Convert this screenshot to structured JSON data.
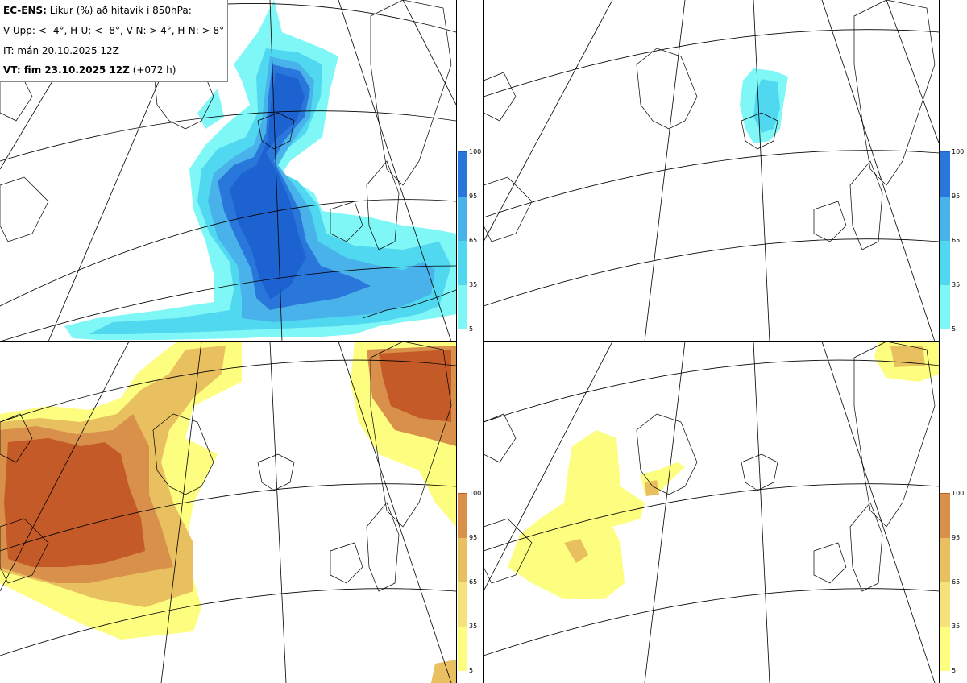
{
  "header": {
    "line1_bold": "EC-ENS:",
    "line1_rest": " Líkur (%) að hitavik í 850hPa:",
    "line2": "V-Upp: < -4°, H-U: < -8°, V-N: > 4°, H-N: > 8°",
    "line3": "IT: mán 20.10.2025 12Z",
    "line4_bold": "VT: fim 23.10.2025 12Z",
    "line4_rest": " (+072 h)"
  },
  "colorbar": {
    "ticks": [
      "100",
      "95",
      "65",
      "35",
      "5"
    ]
  },
  "colors": {
    "cold": [
      "#80f7f7",
      "#50d8f0",
      "#4ab2ea",
      "#2a77db",
      "#1d62d1"
    ],
    "warm": [
      "#fdfd80",
      "#f6e27a",
      "#e9c060",
      "#d9904a",
      "#c45a28"
    ]
  },
  "panels": {
    "top_left": "V-Upp < -4°",
    "top_right": "H-U < -8°",
    "bottom_left": "V-N > 4°",
    "bottom_right": "H-N > 8°"
  }
}
